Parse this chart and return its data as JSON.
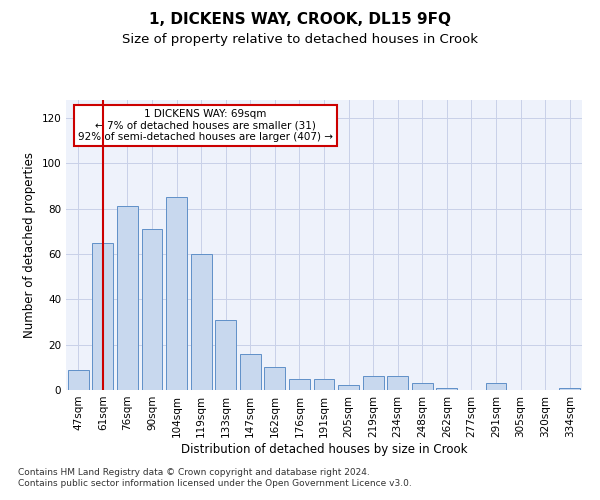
{
  "title": "1, DICKENS WAY, CROOK, DL15 9FQ",
  "subtitle": "Size of property relative to detached houses in Crook",
  "xlabel": "Distribution of detached houses by size in Crook",
  "ylabel": "Number of detached properties",
  "categories": [
    "47sqm",
    "61sqm",
    "76sqm",
    "90sqm",
    "104sqm",
    "119sqm",
    "133sqm",
    "147sqm",
    "162sqm",
    "176sqm",
    "191sqm",
    "205sqm",
    "219sqm",
    "234sqm",
    "248sqm",
    "262sqm",
    "277sqm",
    "291sqm",
    "305sqm",
    "320sqm",
    "334sqm"
  ],
  "values": [
    9,
    65,
    81,
    71,
    85,
    60,
    31,
    16,
    10,
    5,
    5,
    2,
    6,
    6,
    3,
    1,
    0,
    3,
    0,
    0,
    1
  ],
  "bar_color": "#c8d8ee",
  "bar_edge_color": "#6090c8",
  "vline_x_index": 1,
  "vline_color": "#cc0000",
  "annotation_line1": "1 DICKENS WAY: 69sqm",
  "annotation_line2": "← 7% of detached houses are smaller (31)",
  "annotation_line3": "92% of semi-detached houses are larger (407) →",
  "annotation_box_color": "#ffffff",
  "annotation_box_edge": "#cc0000",
  "ylim": [
    0,
    128
  ],
  "yticks": [
    0,
    20,
    40,
    60,
    80,
    100,
    120
  ],
  "footnote": "Contains HM Land Registry data © Crown copyright and database right 2024.\nContains public sector information licensed under the Open Government Licence v3.0.",
  "bg_color": "#eef2fb",
  "grid_color": "#c8d0e8",
  "title_fontsize": 11,
  "subtitle_fontsize": 9.5,
  "ylabel_fontsize": 8.5,
  "xlabel_fontsize": 8.5,
  "tick_fontsize": 7.5,
  "annotation_fontsize": 7.5,
  "footnote_fontsize": 6.5
}
